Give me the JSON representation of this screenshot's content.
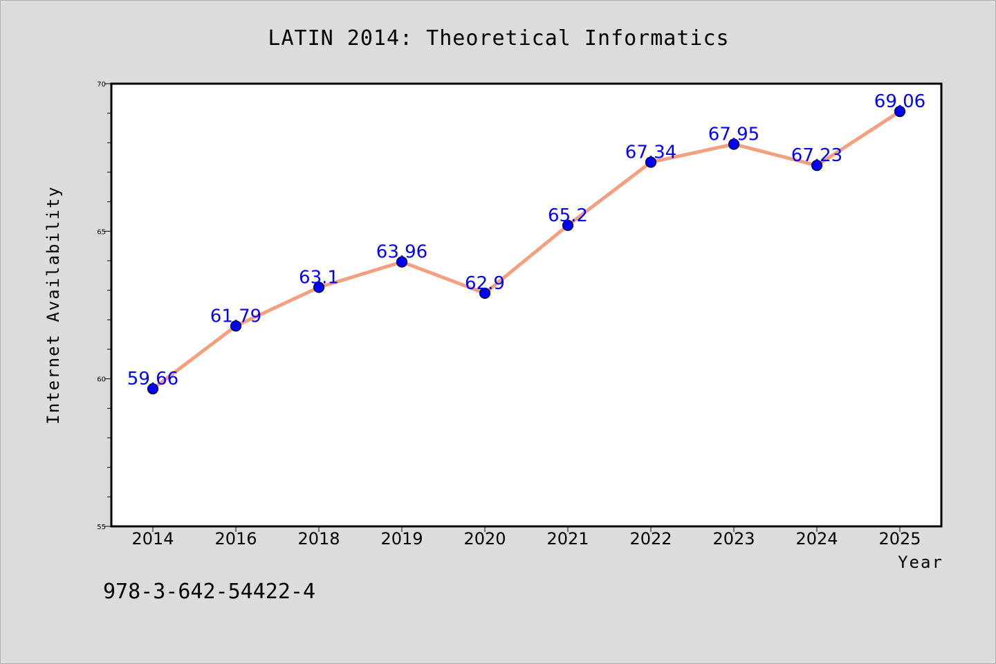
{
  "chart_data": {
    "type": "line",
    "title": "LATIN 2014: Theoretical Informatics",
    "xlabel": "Year",
    "ylabel": "Internet Availability",
    "categories": [
      "2014",
      "2016",
      "2018",
      "2019",
      "2020",
      "2021",
      "2022",
      "2023",
      "2024",
      "2025"
    ],
    "values": [
      59.66,
      61.79,
      63.1,
      63.96,
      62.9,
      65.2,
      67.34,
      67.95,
      67.23,
      69.06
    ],
    "data_labels": [
      "59.66",
      "61.79",
      "63.1",
      "63.96",
      "62.9",
      "65.2",
      "67.34",
      "67.95",
      "67.23",
      "69.06"
    ],
    "ylim": [
      55,
      70
    ],
    "yticks": [
      "55",
      "60",
      "65",
      "70"
    ],
    "ytick_values": [
      55,
      60,
      65,
      70
    ],
    "y_minor_step": 1,
    "grid": false,
    "legend": "none",
    "line_color": "#f4a07f",
    "marker_color": "#0000ff",
    "label_color": "#0000ff"
  },
  "footnote": "978-3-642-54422-4"
}
